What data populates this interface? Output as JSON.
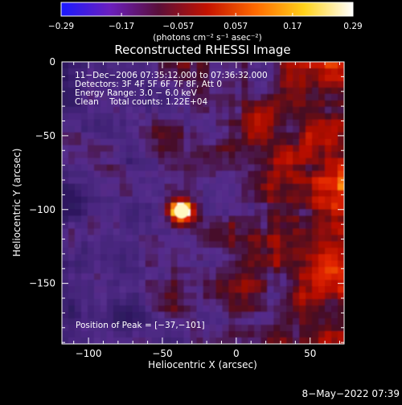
{
  "chart_data": [
    {
      "type": "heatmap",
      "title": "Reconstructed RHESSI Image",
      "xlabel": "Heliocentric X (arcsec)",
      "ylabel": "Heliocentric Y (arcsec)",
      "xlim": [
        -118,
        73
      ],
      "ylim": [
        -191,
        0
      ],
      "x_ticks": [
        {
          "value": -100,
          "label": "−100"
        },
        {
          "value": -50,
          "label": "−50"
        },
        {
          "value": 0,
          "label": "0"
        },
        {
          "value": 50,
          "label": "50"
        }
      ],
      "y_ticks": [
        {
          "value": 0,
          "label": "0"
        },
        {
          "value": -50,
          "label": "−50"
        },
        {
          "value": -100,
          "label": "−100"
        },
        {
          "value": -150,
          "label": "−150"
        }
      ],
      "annotations": [
        "11−Dec−2006 07:35:12.000 to 07:36:32.000",
        "Detectors: 3F 4F 5F 6F 7F 8F, Att 0",
        "Energy Range: 3.0 − 6.0 keV",
        "Clean    Total counts: 1.22E+04"
      ],
      "peak_label": "Position of Peak = [−37,−101]",
      "peak": {
        "x": -37,
        "y": -101
      },
      "grid": false
    },
    {
      "type": "colorbar",
      "range": [
        -0.29,
        0.29
      ],
      "ticks": [
        "−0.29",
        "−0.17",
        "−0.057",
        "0.057",
        "0.17",
        "0.29"
      ],
      "tick_values": [
        -0.29,
        -0.17,
        -0.057,
        0.057,
        0.17,
        0.29
      ],
      "units_label": "(photons cm⁻² s⁻¹ asec⁻²)",
      "colors": [
        "#1a1aff",
        "#6b1fbf",
        "#5a0f3a",
        "#c41200",
        "#ff6a00",
        "#ffd21a",
        "#ffffff"
      ]
    }
  ],
  "footer": {
    "date_text": "8−May−2022 07:39"
  }
}
